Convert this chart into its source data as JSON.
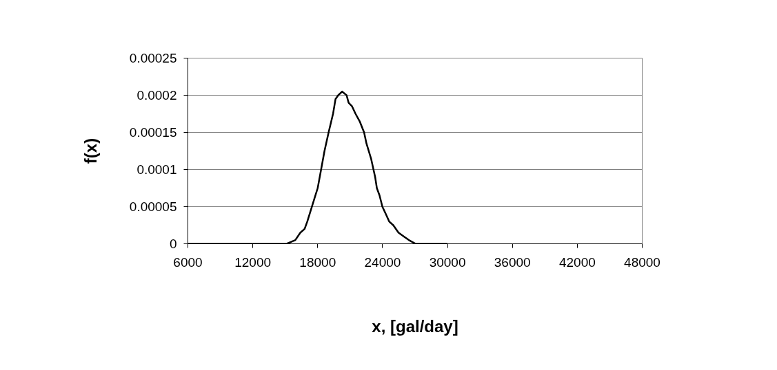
{
  "chart_data": {
    "type": "line",
    "xlabel": "x, [gal/day]",
    "ylabel": "f(x)",
    "xlim": [
      6000,
      48000
    ],
    "xticks": [
      6000,
      12000,
      18000,
      24000,
      30000,
      36000,
      42000,
      48000
    ],
    "ylim": [
      0,
      0.00025
    ],
    "yticks": [
      {
        "value": 0,
        "label": "0"
      },
      {
        "value": 5e-05,
        "label": "0.00005"
      },
      {
        "value": 0.0001,
        "label": "0.0001"
      },
      {
        "value": 0.00015,
        "label": "0.00015"
      },
      {
        "value": 0.0002,
        "label": "0.0002"
      },
      {
        "value": 0.00025,
        "label": "0.00025"
      }
    ],
    "grid": "y",
    "marker": "none",
    "line_style": "solid",
    "series": [
      {
        "color": "#000000",
        "x": [
          6000,
          14180,
          15130,
          15930,
          16400,
          16790,
          17040,
          17360,
          17680,
          18000,
          18380,
          18630,
          19010,
          19420,
          19650,
          19900,
          20260,
          20670,
          20860,
          21180,
          21500,
          21880,
          22290,
          22510,
          22930,
          23310,
          23470,
          23720,
          23980,
          24300,
          24610,
          24990,
          25470,
          25950,
          26430,
          27060,
          27860,
          30000
        ],
        "values": [
          0,
          0,
          0,
          5e-06,
          1.5e-05,
          2e-05,
          3e-05,
          4.5e-05,
          6e-05,
          7.5e-05,
          0.000105,
          0.000125,
          0.00015,
          0.000175,
          0.000195,
          0.0002,
          0.000205,
          0.0002,
          0.00019,
          0.000185,
          0.000175,
          0.000165,
          0.00015,
          0.000135,
          0.000115,
          9e-05,
          7.5e-05,
          6.5e-05,
          5e-05,
          4e-05,
          3e-05,
          2.5e-05,
          1.5e-05,
          1e-05,
          5e-06,
          0,
          0,
          0
        ]
      }
    ]
  }
}
